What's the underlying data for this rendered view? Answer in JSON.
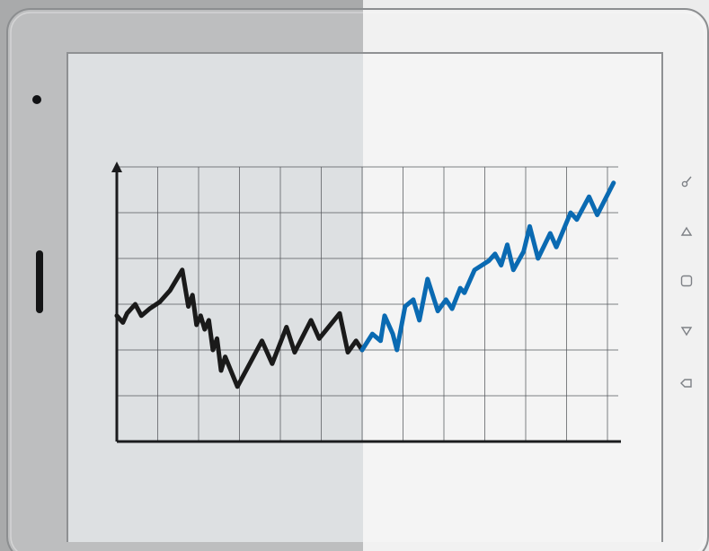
{
  "colors": {
    "background_left": "#a9aaab",
    "background_right": "#ececec",
    "tablet_frame_left": "#bdbebf",
    "tablet_frame_right": "#f1f1f1",
    "screen_left": "#dde0e2",
    "screen_right": "#f4f4f4",
    "grid_line": "#55585c",
    "axis": "#1b1c1e",
    "series_past": "#1a1a1a",
    "series_future": "#0a6ab2",
    "side_icons": "#7e8186"
  },
  "side_buttons": [
    {
      "icon": "key-icon"
    },
    {
      "icon": "triangle-up-icon"
    },
    {
      "icon": "square-icon"
    },
    {
      "icon": "triangle-down-icon"
    },
    {
      "icon": "back-icon"
    }
  ],
  "chart_data": {
    "type": "line",
    "title": "",
    "xlabel": "",
    "ylabel": "",
    "grid": true,
    "xlim": [
      0,
      12
    ],
    "ylim": [
      0,
      6
    ],
    "series": [
      {
        "values": [
          [
            0,
            2.75
          ],
          [
            0.15,
            2.6
          ],
          [
            0.25,
            2.8
          ],
          [
            0.45,
            3.0
          ],
          [
            0.6,
            2.75
          ],
          [
            0.8,
            2.9
          ],
          [
            1.05,
            3.05
          ],
          [
            1.3,
            3.3
          ],
          [
            1.6,
            3.75
          ],
          [
            1.75,
            2.95
          ],
          [
            1.85,
            3.2
          ],
          [
            1.95,
            2.55
          ],
          [
            2.05,
            2.75
          ],
          [
            2.15,
            2.45
          ],
          [
            2.25,
            2.65
          ],
          [
            2.35,
            2.0
          ],
          [
            2.45,
            2.25
          ],
          [
            2.55,
            1.55
          ],
          [
            2.65,
            1.85
          ],
          [
            2.95,
            1.2
          ],
          [
            3.25,
            1.7
          ],
          [
            3.55,
            2.2
          ],
          [
            3.8,
            1.7
          ],
          [
            4.15,
            2.5
          ],
          [
            4.35,
            1.95
          ],
          [
            4.75,
            2.65
          ],
          [
            4.95,
            2.25
          ],
          [
            5.45,
            2.8
          ],
          [
            5.65,
            1.95
          ],
          [
            5.85,
            2.2
          ],
          [
            6.0,
            2.0
          ]
        ]
      },
      {
        "values": [
          [
            6.0,
            2.0
          ],
          [
            6.25,
            2.35
          ],
          [
            6.45,
            2.2
          ],
          [
            6.55,
            2.75
          ],
          [
            6.75,
            2.35
          ],
          [
            6.85,
            2.0
          ],
          [
            7.05,
            2.95
          ],
          [
            7.25,
            3.1
          ],
          [
            7.4,
            2.65
          ],
          [
            7.6,
            3.55
          ],
          [
            7.85,
            2.85
          ],
          [
            8.05,
            3.1
          ],
          [
            8.2,
            2.9
          ],
          [
            8.4,
            3.35
          ],
          [
            8.5,
            3.25
          ],
          [
            8.75,
            3.75
          ],
          [
            9.1,
            3.95
          ],
          [
            9.25,
            4.1
          ],
          [
            9.4,
            3.85
          ],
          [
            9.55,
            4.3
          ],
          [
            9.7,
            3.75
          ],
          [
            9.95,
            4.15
          ],
          [
            10.1,
            4.7
          ],
          [
            10.3,
            4.0
          ],
          [
            10.6,
            4.55
          ],
          [
            10.75,
            4.25
          ],
          [
            11.1,
            5.0
          ],
          [
            11.25,
            4.85
          ],
          [
            11.55,
            5.35
          ],
          [
            11.75,
            4.95
          ],
          [
            12.15,
            5.65
          ]
        ]
      }
    ]
  }
}
